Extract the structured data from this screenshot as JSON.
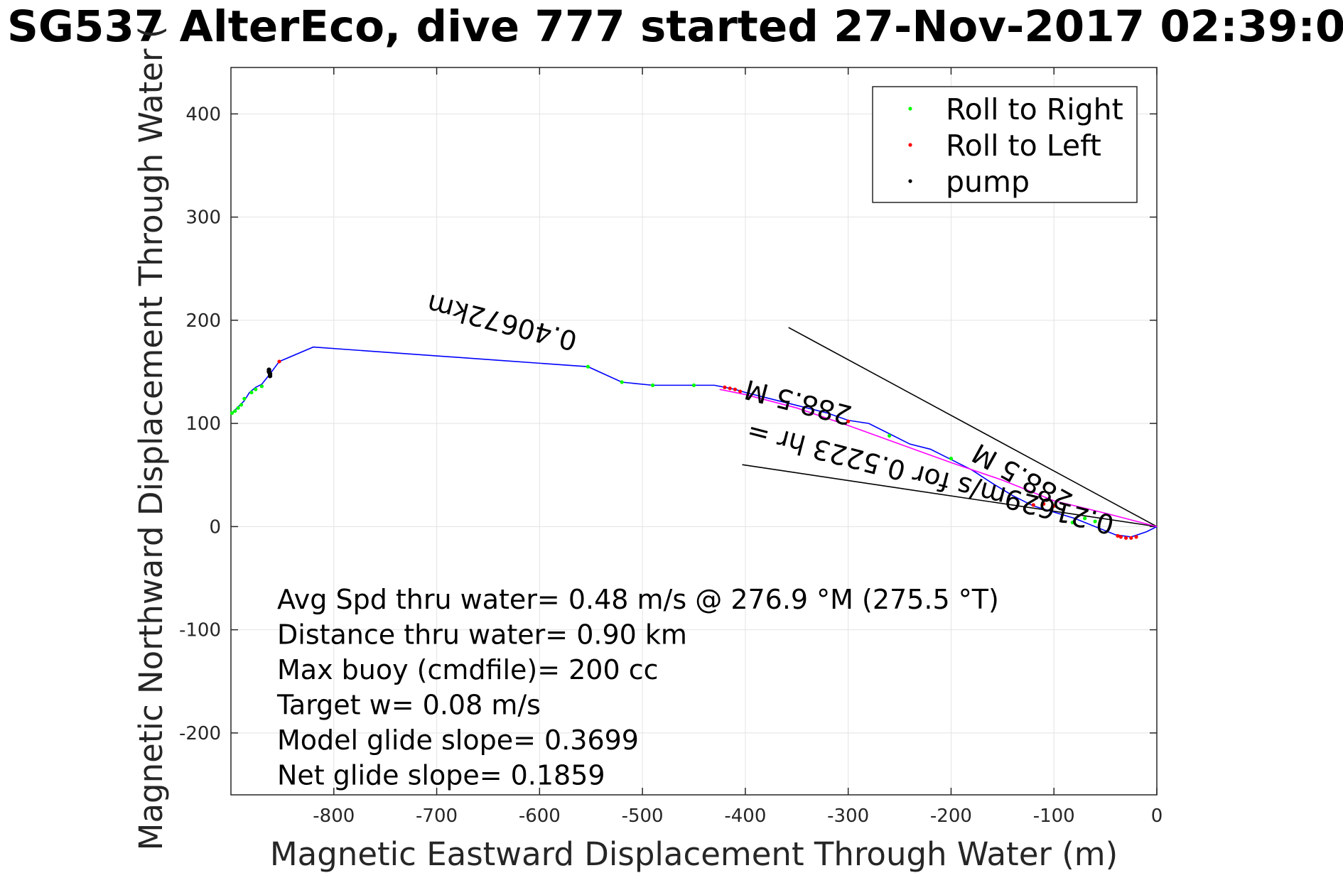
{
  "title": "SG537 AlterEco, dive 777 started 27-Nov-2017 02:39:0",
  "chart_data": {
    "type": "line",
    "title": "SG537 AlterEco, dive 777 started 27-Nov-2017 02:39:0",
    "xlabel": "Magnetic Eastward Displacement Through Water (m)",
    "ylabel": "Magnetic Northward Displacement Through Water (",
    "xlim": [
      -900,
      0
    ],
    "ylim": [
      -260,
      445
    ],
    "xticks": [
      -800,
      -700,
      -600,
      -500,
      -400,
      -300,
      -200,
      -100,
      0
    ],
    "xtick_labels": [
      "-800",
      "-700",
      "-600",
      "-500",
      "-400",
      "-300",
      "-200",
      "-100",
      "0"
    ],
    "yticks": [
      -200,
      -100,
      0,
      100,
      200,
      300,
      400
    ],
    "ytick_labels": [
      "-200",
      "-100",
      "0",
      "100",
      "200",
      "300",
      "400"
    ],
    "grid": true,
    "legend_placement": "top-right",
    "legend": [
      {
        "name": "Roll to Right",
        "color": "#00ff00"
      },
      {
        "name": "Roll to Left",
        "color": "#ff0000"
      },
      {
        "name": "pump",
        "color": "#000000"
      }
    ],
    "track": {
      "color": "#0000ff",
      "x": [
        0,
        -10,
        -25,
        -40,
        -60,
        -80,
        -100,
        -120,
        -140,
        -160,
        -180,
        -200,
        -220,
        -240,
        -260,
        -280,
        -300,
        -320,
        -340,
        -360,
        -380,
        -400,
        -410,
        -420,
        -430,
        -440,
        -450,
        -470,
        -490,
        -520,
        -553,
        -820,
        -853,
        -862,
        -870,
        -876,
        -882,
        -887,
        -892,
        -897,
        -900
      ],
      "y": [
        0,
        -5,
        -10,
        -8,
        0,
        8,
        14,
        20,
        30,
        42,
        55,
        65,
        75,
        80,
        90,
        100,
        103,
        110,
        115,
        120,
        125,
        130,
        133,
        135,
        137,
        137,
        137,
        137,
        137,
        140,
        155,
        174,
        160,
        148,
        138,
        135,
        130,
        122,
        117,
        112,
        109
      ]
    },
    "glide_track": {
      "color": "#ff00ff",
      "x": [
        0,
        -50,
        -100,
        -150,
        -200,
        -250,
        -300,
        -350,
        -400,
        -425
      ],
      "y": [
        0,
        13,
        25,
        45,
        62,
        80,
        98,
        115,
        128,
        133
      ]
    },
    "roll_right_points": {
      "color": "#00ff00",
      "x": [
        -60,
        -70,
        -82,
        -200,
        -260,
        -450,
        -490,
        -520,
        -553,
        -870,
        -876,
        -880,
        -887,
        -890,
        -893,
        -896,
        -899
      ],
      "y": [
        5,
        8,
        4,
        66,
        88,
        137,
        137,
        140,
        155,
        136,
        133,
        130,
        124,
        118,
        115,
        112,
        110
      ]
    },
    "roll_left_points": {
      "color": "#ff0000",
      "x": [
        -20,
        -25,
        -30,
        -35,
        -38,
        -100,
        -110,
        -120,
        -300,
        -405,
        -410,
        -415,
        -420,
        -853
      ],
      "y": [
        -10,
        -11,
        -11,
        -10,
        -9,
        20,
        22,
        21,
        102,
        131,
        133,
        134,
        135,
        160
      ]
    },
    "pump_points": {
      "color": "#000000",
      "x": [
        -862,
        -862,
        -863,
        -863
      ],
      "y": [
        146,
        148,
        150,
        152
      ]
    },
    "heading_lines": [
      {
        "color": "#000000",
        "x": [
          0,
          -358
        ],
        "y": [
          0,
          193
        ]
      },
      {
        "color": "#000000",
        "x": [
          0,
          -403
        ],
        "y": [
          0,
          60
        ]
      }
    ],
    "rotated_annotations": [
      {
        "text": "0.406 72km",
        "display": "0.40672km"
      },
      {
        "text": "288.5 M",
        "display": "288.5 M"
      },
      {
        "text": "0.21629m/s for 0.5223 hr = 0.40672km",
        "display": "0.21629m/s for 0.5223 hr ="
      },
      {
        "text": "288.5 M",
        "display": "288.5 M"
      }
    ],
    "annotations": [
      "Avg Spd thru water=  0.48 m/s @ 276.9 °M (275.5 °T)",
      "Distance thru water=  0.90 km",
      "Max buoy (cmdfile)= 200 cc",
      "Target w= 0.08 m/s",
      "Model glide slope= 0.3699",
      "Net glide slope= 0.1859"
    ]
  }
}
